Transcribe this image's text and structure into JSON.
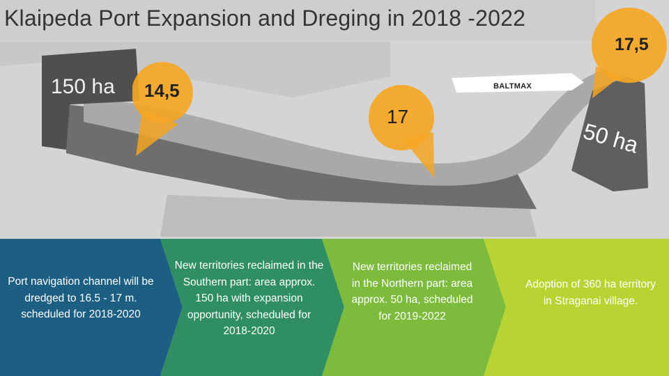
{
  "title": "Klaipeda Port Expansion and Dreging in 2018 -2022",
  "map": {
    "area_south": "150 ha",
    "area_north": "50 ha",
    "depth_markers": [
      "14,5",
      "17",
      "17,5"
    ],
    "ship_label": "BALTMAX"
  },
  "colors": {
    "marker": "#f5a623",
    "panel_blue": "#1d5f82",
    "panel_teal": "#2f8f62",
    "panel_green": "#7dbb3c",
    "panel_lime": "#b8d432"
  },
  "panels": [
    {
      "text": "Port navigation channel will be dredged to 16.5 - 17 m. scheduled for 2018-2020"
    },
    {
      "text": "New territories reclaimed in the Southern part: area approx. 150 ha with expansion opportunity, scheduled for 2018-2020"
    },
    {
      "text": "New territories reclaimed in the Northern part: area approx. 50 ha, scheduled for 2019-2022"
    },
    {
      "text": "Adoption of 360 ha territory in Straganai village."
    }
  ]
}
